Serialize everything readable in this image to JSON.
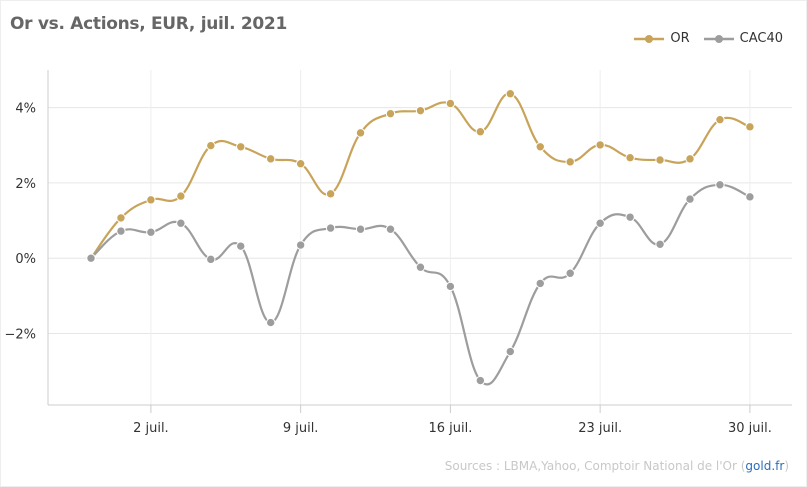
{
  "chart_data": {
    "type": "line",
    "title": "Or vs. Actions, EUR, juil. 2021",
    "xlabel": "",
    "ylabel": "",
    "x": [
      "30 juin",
      "1 juil.",
      "2 juil.",
      "5 juil.",
      "6 juil.",
      "7 juil.",
      "8 juil.",
      "9 juil.",
      "12 juil.",
      "13 juil.",
      "14 juil.",
      "15 juil.",
      "16 juil.",
      "19 juil.",
      "20 juil.",
      "21 juil.",
      "22 juil.",
      "23 juil.",
      "26 juil.",
      "27 juil.",
      "28 juil.",
      "29 juil.",
      "30 juil."
    ],
    "x_tick_labels": [
      "2 juil.",
      "9 juil.",
      "16 juil.",
      "23 juil.",
      "30 juil."
    ],
    "x_tick_indices": [
      2,
      7,
      12,
      17,
      22
    ],
    "y_ticks": [
      -2,
      0,
      2,
      4
    ],
    "y_tick_labels": [
      "−2%",
      "0%",
      "2%",
      "4%"
    ],
    "ylim": [
      -3.9,
      5.0
    ],
    "grid": true,
    "legend_position": "top-right",
    "series": [
      {
        "name": "OR",
        "color": "#c8a45a",
        "values": [
          0,
          1.07,
          1.55,
          1.65,
          2.99,
          2.96,
          2.64,
          2.51,
          1.71,
          3.33,
          3.84,
          3.92,
          4.11,
          3.36,
          4.37,
          2.96,
          2.56,
          3.01,
          2.67,
          2.61,
          2.64,
          3.68,
          3.49
        ]
      },
      {
        "name": "CAC40",
        "color": "#9d9d9d",
        "values": [
          0,
          0.72,
          0.69,
          0.93,
          -0.03,
          0.32,
          -1.71,
          0.35,
          0.8,
          0.77,
          0.77,
          -0.24,
          -0.75,
          -3.25,
          -2.48,
          -0.67,
          -0.4,
          0.93,
          1.09,
          0.37,
          1.57,
          1.95,
          1.63
        ]
      }
    ]
  },
  "source": {
    "text": "Sources : LBMA,Yahoo, Comptoir National de l'Or (",
    "link": "gold.fr",
    "close": ")"
  }
}
